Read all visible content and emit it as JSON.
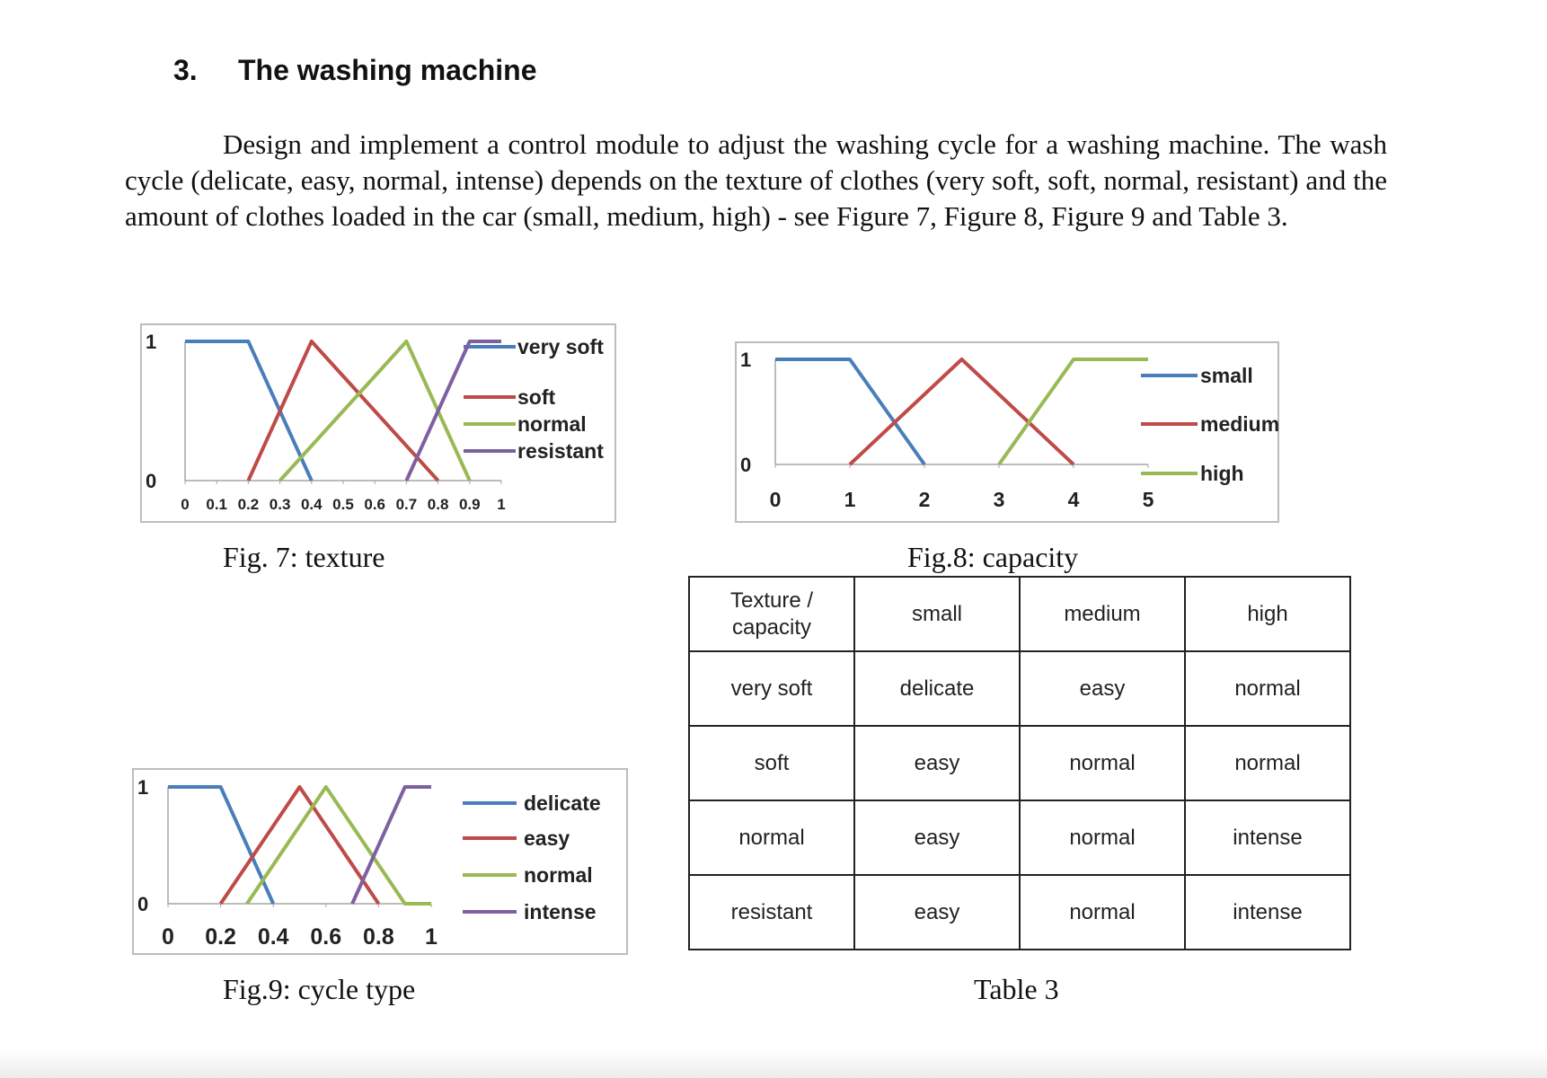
{
  "heading": {
    "number": "3.",
    "title": "The washing machine"
  },
  "paragraph": "Design and implement a control module to adjust the washing cycle for a washing machine. The wash cycle (delicate, easy, normal, intense) depends on the texture of clothes (very soft, soft, normal, resistant) and the amount of clothes loaded in the car (small, medium, high) - see Figure 7, Figure 8, Figure 9 and Table 3.",
  "captions": {
    "fig7": "Fig. 7: texture",
    "fig8": "Fig.8: capacity",
    "fig9": "Fig.9: cycle type",
    "table3": "Table 3"
  },
  "chart_data": [
    {
      "type": "line",
      "id": "fig7",
      "xlim": [
        0,
        1
      ],
      "ylim": [
        0,
        1
      ],
      "xticks": [
        "0",
        "0.1",
        "0.2",
        "0.3",
        "0.4",
        "0.5",
        "0.6",
        "0.7",
        "0.8",
        "0.9",
        "1"
      ],
      "yticks": [
        "0",
        "1"
      ],
      "legend_position": "right",
      "series": [
        {
          "name": "very soft",
          "color": "#4a7ebb",
          "x": [
            0,
            0.2,
            0.4
          ],
          "y": [
            1,
            1,
            0
          ]
        },
        {
          "name": "soft",
          "color": "#be4b48",
          "x": [
            0.2,
            0.4,
            0.8
          ],
          "y": [
            0,
            1,
            0
          ]
        },
        {
          "name": "normal",
          "color": "#98b954",
          "x": [
            0.3,
            0.7,
            0.9
          ],
          "y": [
            0,
            1,
            0
          ]
        },
        {
          "name": "resistant",
          "color": "#7d60a0",
          "x": [
            0.7,
            0.9,
            1
          ],
          "y": [
            0,
            1,
            1
          ]
        }
      ]
    },
    {
      "type": "line",
      "id": "fig8",
      "xlim": [
        0,
        5
      ],
      "ylim": [
        0,
        1
      ],
      "xticks": [
        "0",
        "1",
        "2",
        "3",
        "4",
        "5"
      ],
      "yticks": [
        "0",
        "1"
      ],
      "legend_position": "right",
      "series": [
        {
          "name": "small",
          "color": "#4a7ebb",
          "x": [
            0,
            1,
            2
          ],
          "y": [
            1,
            1,
            0
          ]
        },
        {
          "name": "medium",
          "color": "#be4b48",
          "x": [
            1,
            2.5,
            4
          ],
          "y": [
            0,
            1,
            0
          ]
        },
        {
          "name": "high",
          "color": "#98b954",
          "x": [
            3,
            4,
            5
          ],
          "y": [
            0,
            1,
            1
          ]
        }
      ]
    },
    {
      "type": "line",
      "id": "fig9",
      "xlim": [
        0,
        1
      ],
      "ylim": [
        0,
        1
      ],
      "xticks": [
        "0",
        "0.2",
        "0.4",
        "0.6",
        "0.8",
        "1"
      ],
      "yticks": [
        "0",
        "1"
      ],
      "legend_position": "right",
      "series": [
        {
          "name": "delicate",
          "color": "#4a7ebb",
          "x": [
            0,
            0.2,
            0.4
          ],
          "y": [
            1,
            1,
            0
          ]
        },
        {
          "name": "easy",
          "color": "#be4b48",
          "x": [
            0.2,
            0.5,
            0.8
          ],
          "y": [
            0,
            1,
            0
          ]
        },
        {
          "name": "normal",
          "color": "#98b954",
          "x": [
            0.3,
            0.6,
            0.9,
            1
          ],
          "y": [
            0,
            1,
            0,
            0
          ]
        },
        {
          "name": "intense",
          "color": "#7d60a0",
          "x": [
            0.7,
            0.9,
            1
          ],
          "y": [
            0,
            1,
            1
          ]
        }
      ]
    }
  ],
  "table": {
    "header": [
      "Texture / capacity",
      "small",
      "medium",
      "high"
    ],
    "rows": [
      [
        "very soft",
        "delicate",
        "easy",
        "normal"
      ],
      [
        "soft",
        "easy",
        "normal",
        "normal"
      ],
      [
        "normal",
        "easy",
        "normal",
        "intense"
      ],
      [
        "resistant",
        "easy",
        "normal",
        "intense"
      ]
    ]
  }
}
